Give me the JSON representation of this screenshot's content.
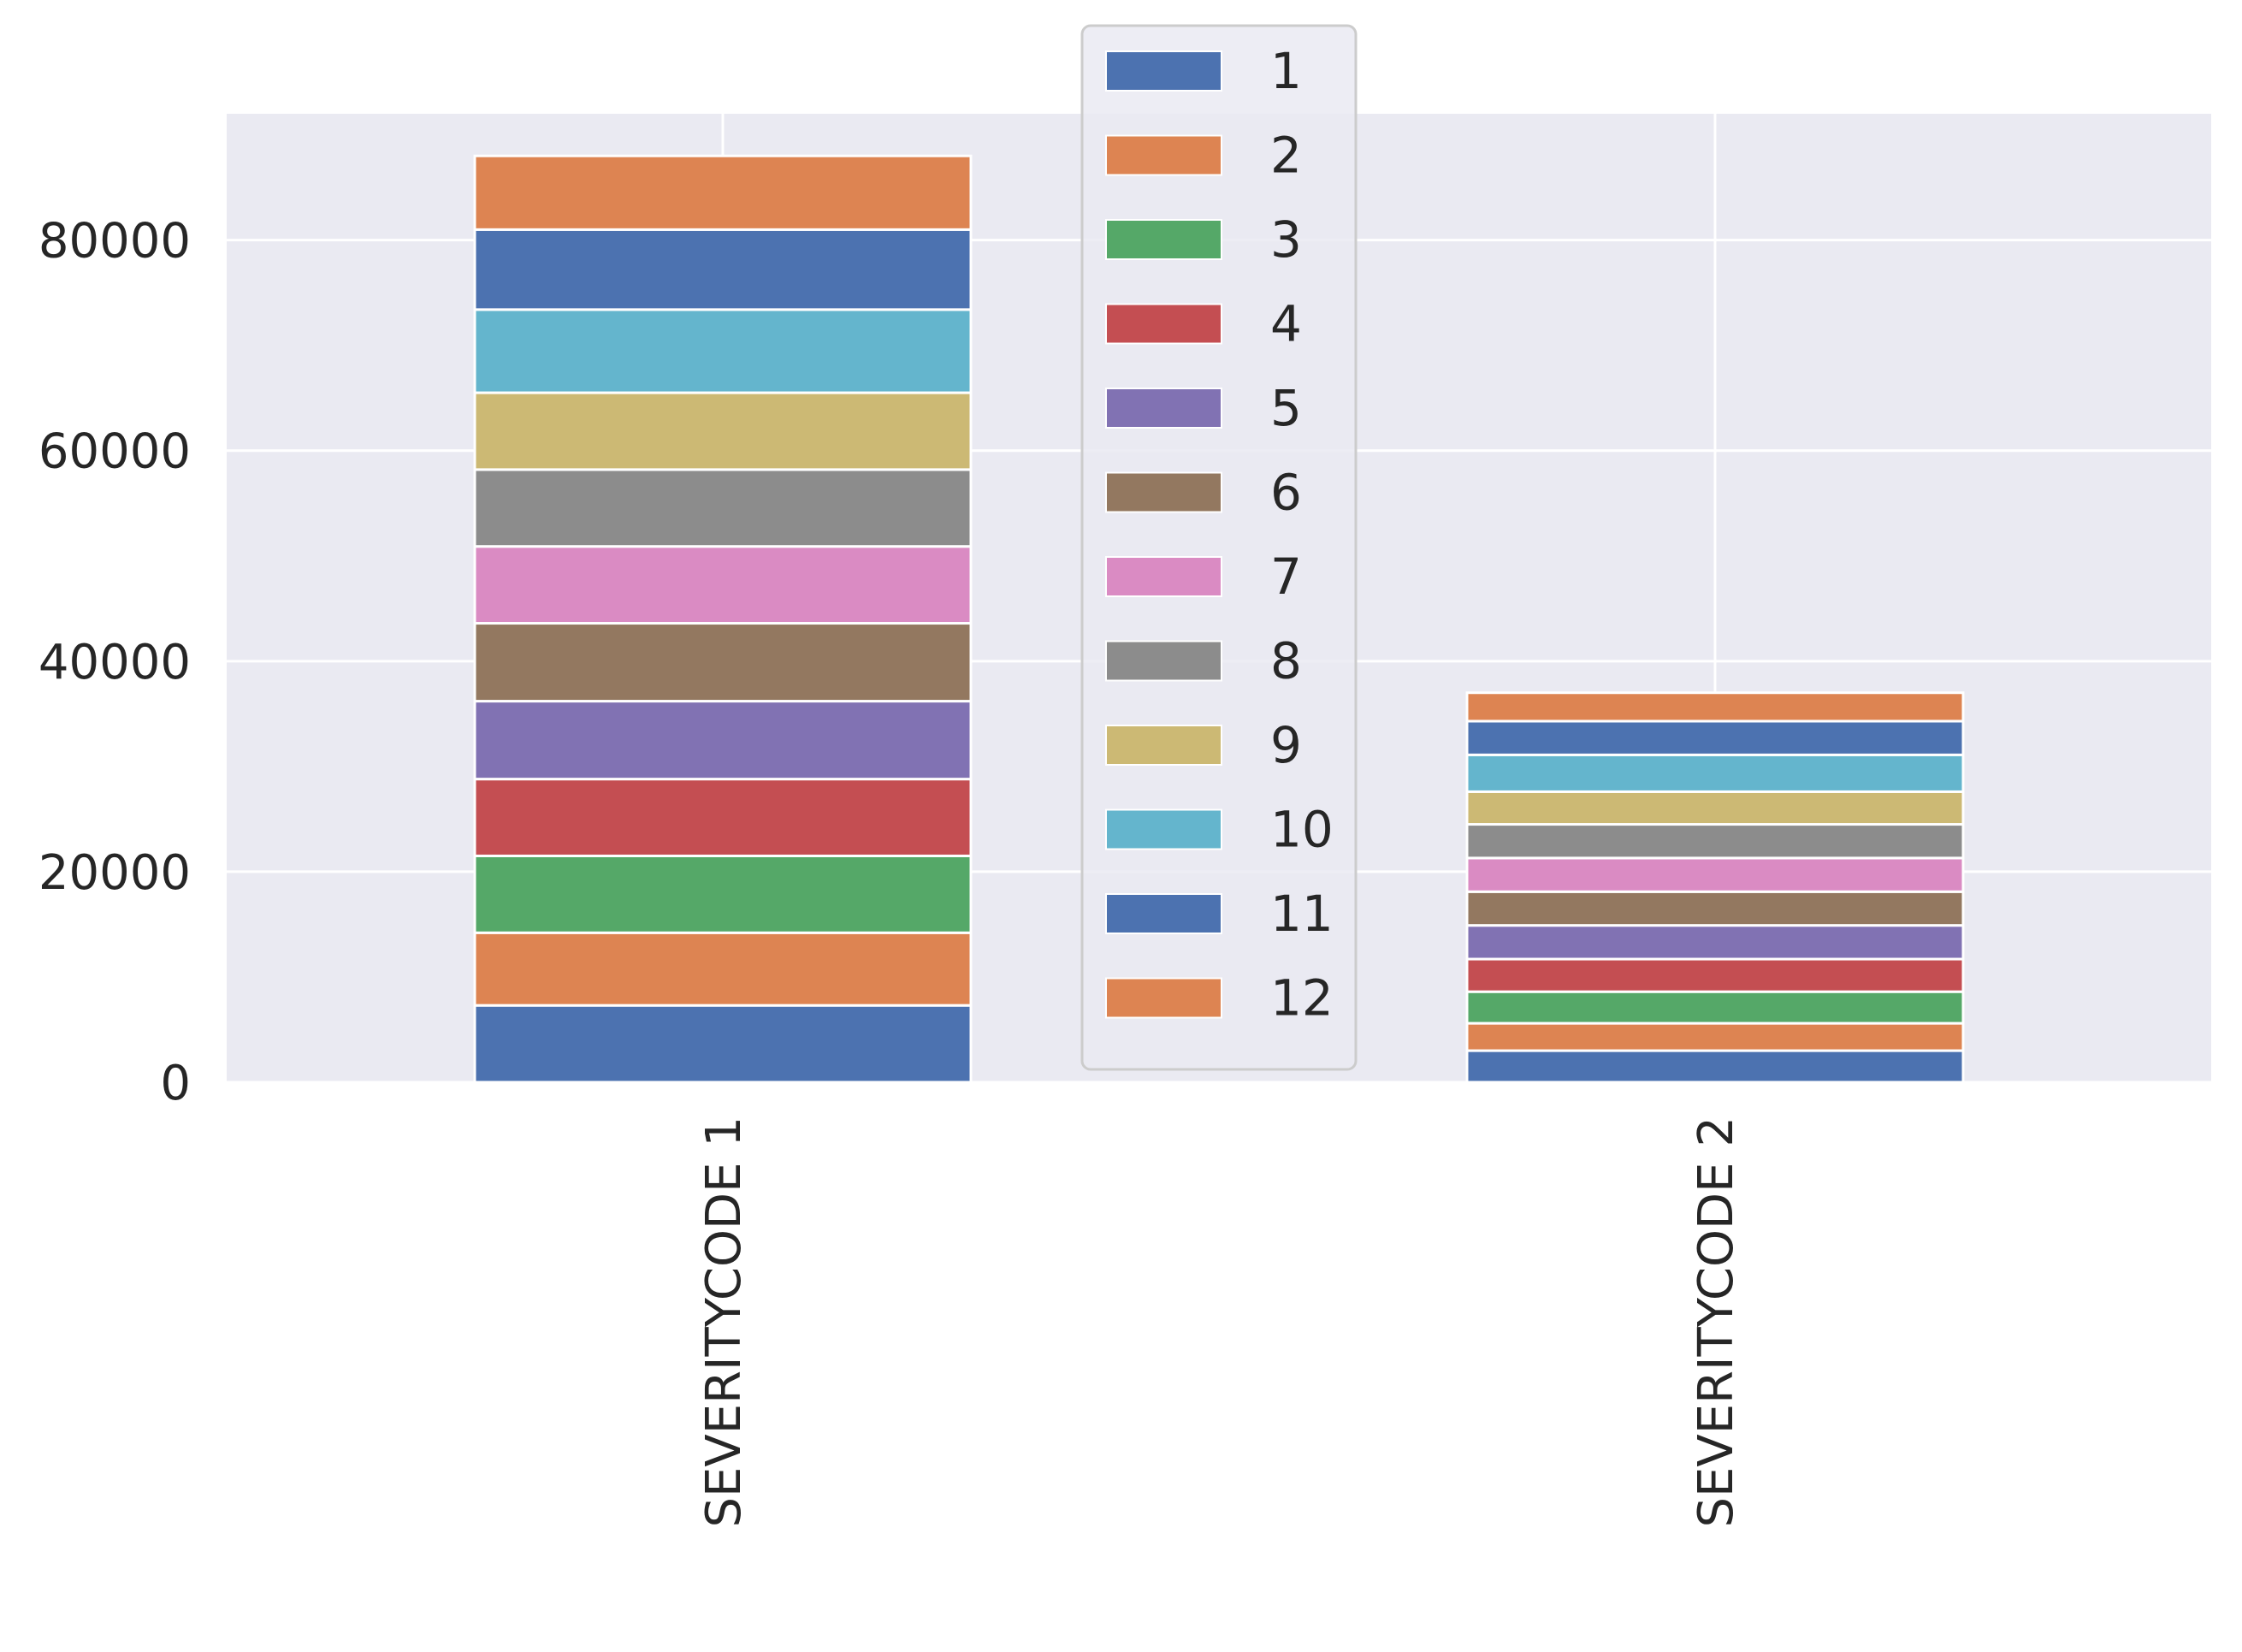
{
  "chart_data": {
    "type": "bar",
    "stacked": true,
    "title": "",
    "xlabel": "",
    "ylabel": "",
    "ylim": [
      0,
      92000
    ],
    "yticks": [
      0,
      20000,
      40000,
      60000,
      80000
    ],
    "ytick_labels": [
      "0",
      "20000",
      "40000",
      "60000",
      "80000"
    ],
    "categories": [
      "SEVERITYCODE 1",
      "SEVERITYCODE 2"
    ],
    "grid": true,
    "legend_position": "top-center",
    "series": [
      {
        "name": "1",
        "color": "#4c72b0",
        "values": [
          7300,
          3000
        ]
      },
      {
        "name": "2",
        "color": "#dd8452",
        "values": [
          6900,
          2600
        ]
      },
      {
        "name": "3",
        "color": "#55a868",
        "values": [
          7300,
          3000
        ]
      },
      {
        "name": "4",
        "color": "#c44e52",
        "values": [
          7300,
          3100
        ]
      },
      {
        "name": "5",
        "color": "#8172b3",
        "values": [
          7400,
          3200
        ]
      },
      {
        "name": "6",
        "color": "#937860",
        "values": [
          7400,
          3200
        ]
      },
      {
        "name": "7",
        "color": "#da8bc3",
        "values": [
          7300,
          3200
        ]
      },
      {
        "name": "8",
        "color": "#8c8c8c",
        "values": [
          7300,
          3200
        ]
      },
      {
        "name": "9",
        "color": "#ccb974",
        "values": [
          7300,
          3100
        ]
      },
      {
        "name": "10",
        "color": "#64b5cd",
        "values": [
          7900,
          3500
        ]
      },
      {
        "name": "11",
        "color": "#4c72b0",
        "values": [
          7600,
          3200
        ]
      },
      {
        "name": "12",
        "color": "#dd8452",
        "values": [
          7000,
          2700
        ]
      }
    ]
  }
}
